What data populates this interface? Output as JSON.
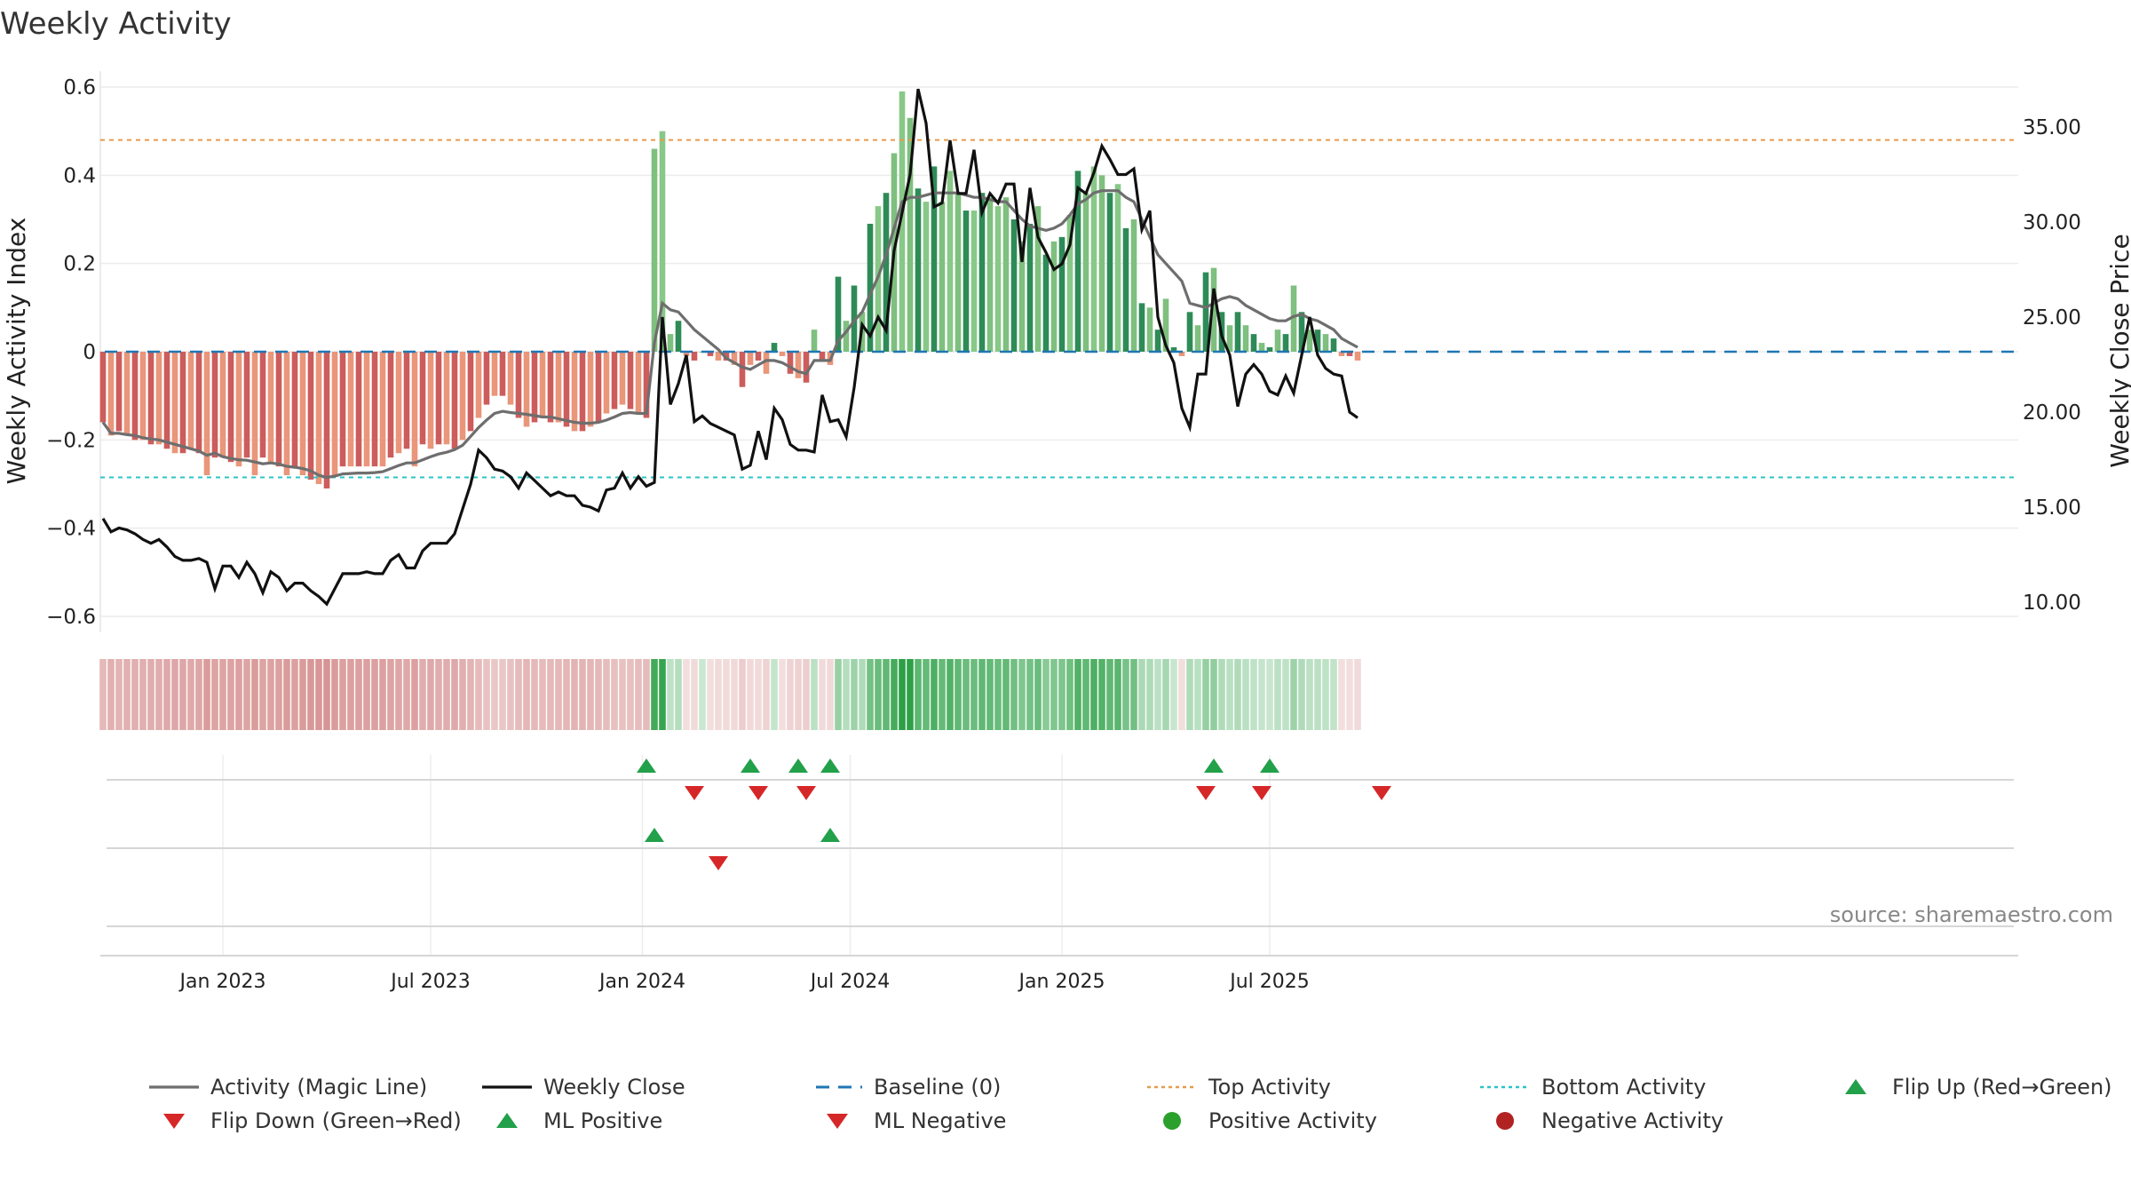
{
  "chart_data": {
    "type": "bar",
    "title": "Weekly Activity",
    "ylabel_left": "Weekly Activity Index",
    "ylabel_right": "Weekly Close Price",
    "source": "source: sharemaestro.com",
    "ylim_left": [
      -0.6,
      0.6
    ],
    "ylim_right": [
      8.5,
      37.5
    ],
    "yticks_left": [
      {
        "v": 0.6,
        "label": "0.6"
      },
      {
        "v": 0.4,
        "label": "0.4"
      },
      {
        "v": 0.2,
        "label": "0.2"
      },
      {
        "v": 0,
        "label": "0"
      },
      {
        "v": -0.2,
        "label": "−0.2"
      },
      {
        "v": -0.4,
        "label": "−0.4"
      },
      {
        "v": -0.6,
        "label": "−0.6"
      }
    ],
    "yticks_right": [
      {
        "v": 35,
        "label": "35.00"
      },
      {
        "v": 30,
        "label": "30.00"
      },
      {
        "v": 25,
        "label": "25.00"
      },
      {
        "v": 20,
        "label": "20.00"
      },
      {
        "v": 15,
        "label": "15.00"
      },
      {
        "v": 10,
        "label": "10.00"
      }
    ],
    "xticks": [
      {
        "week": 15,
        "label": "Jan 2023"
      },
      {
        "week": 41,
        "label": "Jul 2023"
      },
      {
        "week": 67.5,
        "label": "Jan 2024"
      },
      {
        "week": 93.5,
        "label": "Jul 2024"
      },
      {
        "week": 120,
        "label": "Jan 2025"
      },
      {
        "week": 146,
        "label": "Jul 2025"
      }
    ],
    "top_activity": 0.48,
    "bottom_activity": -0.285,
    "baseline": 0,
    "weeks": 158,
    "activity": [
      -0.16,
      -0.19,
      -0.18,
      -0.19,
      -0.2,
      -0.2,
      -0.21,
      -0.21,
      -0.22,
      -0.23,
      -0.23,
      -0.22,
      -0.23,
      -0.28,
      -0.24,
      -0.24,
      -0.25,
      -0.26,
      -0.24,
      -0.28,
      -0.24,
      -0.25,
      -0.26,
      -0.28,
      -0.26,
      -0.28,
      -0.29,
      -0.3,
      -0.31,
      -0.28,
      -0.26,
      -0.26,
      -0.26,
      -0.26,
      -0.26,
      -0.26,
      -0.24,
      -0.23,
      -0.22,
      -0.26,
      -0.21,
      -0.22,
      -0.21,
      -0.21,
      -0.22,
      -0.2,
      -0.18,
      -0.15,
      -0.12,
      -0.1,
      -0.1,
      -0.12,
      -0.15,
      -0.17,
      -0.16,
      -0.15,
      -0.16,
      -0.16,
      -0.17,
      -0.18,
      -0.18,
      -0.17,
      -0.16,
      -0.14,
      -0.13,
      -0.12,
      -0.13,
      -0.14,
      -0.15,
      0.46,
      0.5,
      0.04,
      0.07,
      -0.01,
      -0.02,
      0.0,
      -0.01,
      -0.02,
      -0.02,
      -0.03,
      -0.08,
      -0.03,
      -0.02,
      -0.05,
      0.02,
      -0.01,
      -0.05,
      -0.06,
      -0.07,
      0.05,
      -0.02,
      -0.03,
      0.17,
      0.07,
      0.15,
      0.09,
      0.29,
      0.33,
      0.36,
      0.45,
      0.59,
      0.53,
      0.37,
      0.34,
      0.42,
      0.34,
      0.41,
      0.36,
      0.32,
      0.32,
      0.36,
      0.35,
      0.33,
      0.35,
      0.3,
      0.25,
      0.29,
      0.33,
      0.22,
      0.25,
      0.26,
      0.31,
      0.41,
      0.36,
      0.42,
      0.4,
      0.36,
      0.38,
      0.28,
      0.3,
      0.11,
      0.1,
      0.05,
      0.12,
      0.01,
      -0.01,
      0.09,
      0.06,
      0.18,
      0.19,
      0.09,
      0.06,
      0.09,
      0.06,
      0.04,
      0.02,
      0.01,
      0.05,
      0.04,
      0.15,
      0.09,
      0.05,
      0.05,
      0.04,
      0.03,
      -0.01,
      -0.01,
      -0.02
    ],
    "magic_line": [
      -0.16,
      -0.185,
      -0.185,
      -0.188,
      -0.19,
      -0.195,
      -0.198,
      -0.2,
      -0.205,
      -0.21,
      -0.215,
      -0.22,
      -0.225,
      -0.235,
      -0.23,
      -0.238,
      -0.242,
      -0.245,
      -0.246,
      -0.25,
      -0.254,
      -0.252,
      -0.255,
      -0.26,
      -0.262,
      -0.265,
      -0.27,
      -0.28,
      -0.285,
      -0.282,
      -0.277,
      -0.276,
      -0.275,
      -0.275,
      -0.274,
      -0.272,
      -0.265,
      -0.258,
      -0.252,
      -0.252,
      -0.245,
      -0.238,
      -0.232,
      -0.228,
      -0.222,
      -0.212,
      -0.192,
      -0.172,
      -0.155,
      -0.14,
      -0.135,
      -0.138,
      -0.14,
      -0.142,
      -0.145,
      -0.148,
      -0.148,
      -0.152,
      -0.156,
      -0.16,
      -0.162,
      -0.162,
      -0.16,
      -0.155,
      -0.148,
      -0.14,
      -0.138,
      -0.14,
      -0.14,
      0.02,
      0.11,
      0.095,
      0.09,
      0.07,
      0.05,
      0.035,
      0.02,
      0.005,
      -0.015,
      -0.025,
      -0.035,
      -0.04,
      -0.03,
      -0.02,
      -0.02,
      -0.025,
      -0.035,
      -0.045,
      -0.05,
      -0.02,
      -0.02,
      -0.02,
      0.025,
      0.045,
      0.07,
      0.09,
      0.13,
      0.17,
      0.22,
      0.28,
      0.34,
      0.35,
      0.35,
      0.355,
      0.36,
      0.36,
      0.36,
      0.36,
      0.355,
      0.35,
      0.35,
      0.345,
      0.34,
      0.34,
      0.32,
      0.3,
      0.285,
      0.28,
      0.275,
      0.28,
      0.29,
      0.31,
      0.335,
      0.345,
      0.36,
      0.365,
      0.365,
      0.365,
      0.35,
      0.34,
      0.3,
      0.26,
      0.22,
      0.2,
      0.18,
      0.16,
      0.11,
      0.105,
      0.1,
      0.11,
      0.12,
      0.125,
      0.12,
      0.105,
      0.095,
      0.085,
      0.075,
      0.07,
      0.07,
      0.08,
      0.085,
      0.075,
      0.07,
      0.06,
      0.05,
      0.03,
      0.02,
      0.01
    ],
    "weekly_close": [
      14.4,
      13.7,
      13.9,
      13.8,
      13.6,
      13.3,
      13.1,
      13.3,
      12.9,
      12.4,
      12.2,
      12.2,
      12.3,
      12.1,
      10.7,
      11.9,
      11.9,
      11.3,
      12.1,
      11.5,
      10.5,
      11.6,
      11.3,
      10.6,
      11.0,
      11.0,
      10.6,
      10.3,
      9.9,
      10.7,
      11.5,
      11.5,
      11.5,
      11.6,
      11.5,
      11.5,
      12.2,
      12.5,
      11.8,
      11.8,
      12.7,
      13.1,
      13.1,
      13.1,
      13.6,
      14.9,
      16.2,
      18.0,
      17.6,
      17.0,
      16.9,
      16.6,
      16.0,
      16.8,
      16.4,
      16.0,
      15.6,
      15.8,
      15.6,
      15.6,
      15.1,
      15.0,
      14.8,
      15.9,
      16.0,
      16.8,
      16.0,
      16.6,
      16.1,
      16.3,
      25.0,
      20.4,
      21.5,
      23.0,
      19.5,
      19.8,
      19.4,
      19.2,
      19.0,
      18.8,
      17.0,
      17.2,
      19.0,
      17.5,
      20.2,
      19.6,
      18.3,
      18.0,
      18.0,
      17.9,
      20.9,
      19.5,
      19.6,
      18.7,
      21.3,
      24.6,
      24.0,
      25.0,
      24.3,
      28.5,
      30.5,
      32.5,
      37.0,
      35.2,
      30.8,
      31.0,
      34.3,
      31.5,
      31.5,
      33.8,
      30.5,
      31.5,
      31.0,
      32.0,
      32.0,
      27.9,
      31.8,
      29.2,
      28.4,
      27.5,
      27.8,
      28.8,
      31.8,
      31.5,
      32.6,
      34.0,
      33.3,
      32.5,
      32.5,
      32.8,
      29.6,
      30.6,
      25.0,
      23.5,
      22.6,
      20.2,
      19.2,
      22.0,
      22.0,
      26.5,
      24.0,
      23.0,
      20.3,
      22.0,
      22.5,
      22.0,
      21.1,
      20.9,
      21.9,
      21.0,
      23.0,
      25.0,
      23.0,
      22.3,
      22.0,
      21.9,
      20.0,
      19.7
    ],
    "flip_up_weeks": [
      68,
      81,
      87,
      91,
      139,
      146
    ],
    "flip_down_weeks": [
      74,
      82,
      88,
      138,
      145,
      160
    ],
    "ml_positive_weeks": [
      69,
      91
    ],
    "ml_negative_weeks": [
      77
    ],
    "legend": [
      {
        "label": "Activity (Magic Line)",
        "kind": "line",
        "color": "#6e6e6e"
      },
      {
        "label": "Weekly Close",
        "kind": "line",
        "color": "#111111"
      },
      {
        "label": "Baseline (0)",
        "kind": "dash",
        "color": "#1f77b4"
      },
      {
        "label": "Top Activity",
        "kind": "dot",
        "color": "#e69b4a"
      },
      {
        "label": "Bottom Activity",
        "kind": "dot",
        "color": "#2bc4c4"
      },
      {
        "label": "Flip Up (Red→Green)",
        "kind": "tri-up",
        "color": "#22a04a"
      },
      {
        "label": "Flip Down (Green→Red)",
        "kind": "tri-down",
        "color": "#d62728"
      },
      {
        "label": "ML Positive",
        "kind": "tri-up",
        "color": "#22a04a"
      },
      {
        "label": "ML Negative",
        "kind": "tri-down",
        "color": "#d62728"
      },
      {
        "label": "Positive Activity",
        "kind": "circle",
        "color": "#2ca02c"
      },
      {
        "label": "Negative Activity",
        "kind": "circle",
        "color": "#b22222"
      }
    ]
  }
}
